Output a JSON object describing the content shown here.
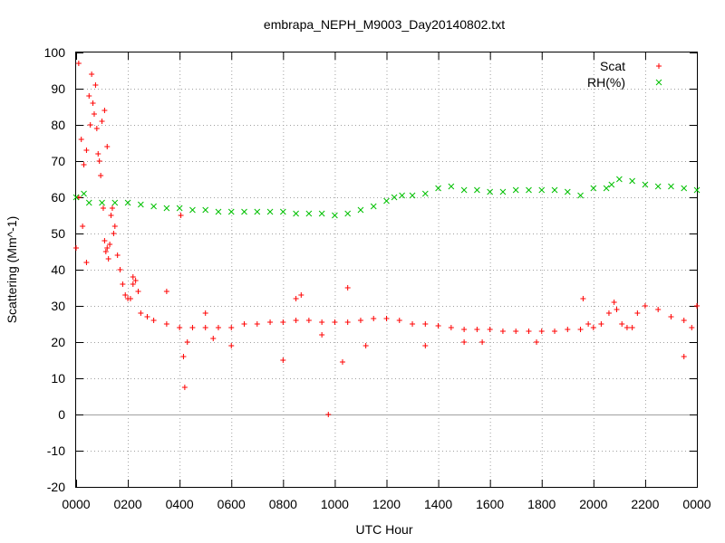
{
  "chart_data": {
    "type": "scatter",
    "title": "embrapa_NEPH_M9003_Day20140802.txt",
    "xlabel": "UTC Hour",
    "ylabel": "Scattering (Mm^-1)",
    "xlim": [
      0,
      24
    ],
    "ylim": [
      -20,
      100
    ],
    "x_ticks": [
      0,
      2,
      4,
      6,
      8,
      10,
      12,
      14,
      16,
      18,
      20,
      22,
      24
    ],
    "x_tick_labels": [
      "0000",
      "0200",
      "0400",
      "0600",
      "0800",
      "1000",
      "1200",
      "1400",
      "1600",
      "1800",
      "2000",
      "2200",
      "0000"
    ],
    "y_ticks": [
      -20,
      -10,
      0,
      10,
      20,
      30,
      40,
      50,
      60,
      70,
      80,
      90,
      100
    ],
    "grid": true,
    "legend_position": "top-right",
    "series": [
      {
        "name": "Scat",
        "marker": "+",
        "color": "#ff0000",
        "x": [
          0.0,
          0.1,
          0.2,
          0.3,
          0.4,
          0.5,
          0.55,
          0.6,
          0.65,
          0.7,
          0.75,
          0.8,
          0.85,
          0.9,
          0.95,
          1.0,
          1.05,
          1.1,
          1.15,
          1.2,
          1.25,
          1.3,
          1.35,
          1.4,
          1.45,
          1.5,
          1.6,
          1.7,
          1.8,
          1.9,
          2.0,
          2.1,
          2.2,
          2.3,
          2.4,
          2.5,
          2.75,
          3.0,
          3.5,
          4.0,
          4.5,
          5.0,
          5.5,
          6.0,
          6.5,
          7.0,
          7.5,
          8.0,
          8.5,
          9.0,
          9.5,
          10.0,
          10.5,
          11.0,
          11.5,
          12.0,
          12.5,
          13.0,
          13.5,
          14.0,
          14.5,
          15.0,
          15.5,
          16.0,
          16.5,
          17.0,
          17.5,
          18.0,
          18.5,
          19.0,
          19.5,
          19.8,
          20.0,
          20.3,
          20.6,
          20.9,
          21.1,
          21.3,
          21.5,
          21.7,
          22.0,
          22.5,
          23.0,
          23.5,
          24.0,
          0.1,
          0.25,
          0.4,
          1.1,
          1.2,
          2.2,
          3.5,
          4.05,
          4.15,
          4.2,
          4.3,
          5.0,
          5.3,
          6.0,
          8.0,
          8.5,
          8.7,
          9.5,
          9.75,
          10.3,
          10.5,
          11.2,
          13.5,
          15.0,
          15.7,
          17.8,
          19.6,
          20.8,
          23.5,
          23.8
        ],
        "y": [
          46,
          60,
          76,
          69,
          73,
          88,
          80,
          94,
          86,
          83,
          91,
          79,
          72,
          70,
          66,
          81,
          57,
          48,
          45,
          46,
          43,
          47,
          55,
          57,
          50,
          52,
          44,
          40,
          36,
          33,
          32,
          32,
          36,
          37,
          34,
          28,
          27,
          26,
          25,
          24,
          24,
          24,
          24,
          24,
          25,
          25,
          25.5,
          25.5,
          26,
          26,
          25.5,
          25.5,
          25.5,
          26,
          26.5,
          26.5,
          26,
          25,
          25,
          24.5,
          24,
          23.5,
          23.5,
          23.5,
          23,
          23,
          23,
          23,
          23,
          23.5,
          23.5,
          25,
          24,
          25,
          28,
          29,
          25,
          24,
          24,
          28,
          30,
          29,
          27,
          26,
          30,
          97,
          52,
          42,
          84,
          74,
          38,
          34,
          55,
          16,
          7.5,
          20,
          28,
          21,
          19,
          15,
          32,
          33,
          22,
          0,
          14.5,
          35,
          19,
          19,
          20,
          20,
          20,
          32,
          31,
          16,
          24
        ]
      },
      {
        "name": "RH(%)",
        "marker": "x",
        "color": "#00c000",
        "x": [
          0.0,
          0.3,
          0.5,
          1.0,
          1.5,
          2.0,
          2.5,
          3.0,
          3.5,
          4.0,
          4.5,
          5.0,
          5.5,
          6.0,
          6.5,
          7.0,
          7.5,
          8.0,
          8.5,
          9.0,
          9.5,
          10.0,
          10.5,
          11.0,
          11.5,
          12.0,
          12.3,
          12.6,
          13.0,
          13.5,
          14.0,
          14.5,
          15.0,
          15.5,
          16.0,
          16.5,
          17.0,
          17.5,
          18.0,
          18.5,
          19.0,
          19.5,
          20.0,
          20.5,
          20.7,
          21.0,
          21.5,
          22.0,
          22.5,
          23.0,
          23.5,
          24.0
        ],
        "y": [
          60,
          61,
          58.5,
          58.5,
          58.5,
          58.5,
          58,
          57.5,
          57,
          57,
          56.5,
          56.5,
          56,
          56,
          56,
          56,
          56,
          56,
          55.5,
          55.5,
          55.5,
          55,
          55.5,
          56.5,
          57.5,
          59,
          60,
          60.5,
          60.5,
          61,
          62.5,
          63,
          62,
          62,
          61.5,
          61.5,
          62,
          62,
          62,
          62,
          61.5,
          60.5,
          62.5,
          62.5,
          63.5,
          65,
          64.5,
          63.5,
          63,
          63,
          62.5,
          62
        ]
      }
    ]
  }
}
